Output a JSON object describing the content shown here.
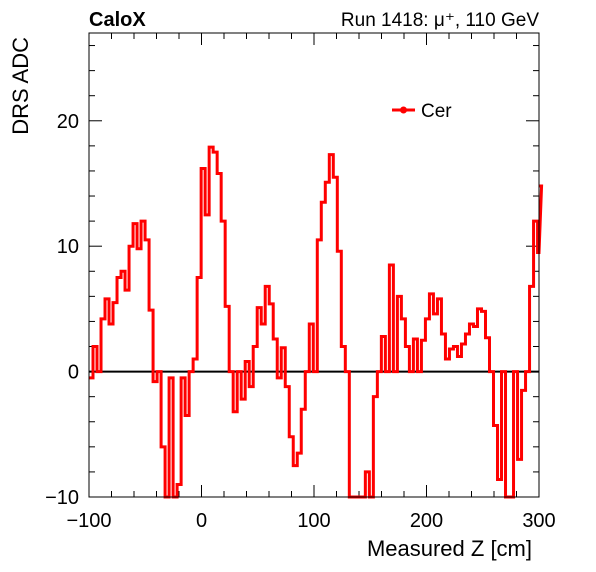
{
  "header": {
    "left": "CaloX",
    "right": "Run 1418:   μ⁺, 110 GeV"
  },
  "colors": {
    "series": "#ff0000",
    "axis": "#000000",
    "zero_line": "#000000"
  },
  "chart_data": {
    "type": "line",
    "xlabel": "Measured Z [cm]",
    "ylabel": "DRS ADC",
    "xlim": [
      -100,
      300
    ],
    "ylim": [
      -10,
      27
    ],
    "x_ticks": [
      -100,
      0,
      100,
      200,
      300
    ],
    "y_ticks": [
      -10,
      0,
      10,
      20
    ],
    "x_tick_labels": [
      "−100",
      "0",
      "100",
      "200",
      "300"
    ],
    "y_tick_labels": [
      "−10",
      "0",
      "10",
      "20"
    ],
    "grid": false,
    "legend_position": "top-right",
    "zero_line": true,
    "series": [
      {
        "name": "Cer",
        "style": "step",
        "bin_width": 3.56,
        "x_start": -100,
        "values": [
          -0.5,
          2,
          0,
          4.2,
          5.8,
          3.8,
          5.5,
          7.5,
          8,
          6.5,
          10,
          11.8,
          9.8,
          12,
          10.5,
          4.9,
          -0.8,
          0,
          -6,
          -10,
          -0.5,
          -10,
          -9,
          -0.5,
          -3.5,
          0,
          1,
          7.5,
          16.2,
          12.5,
          17.9,
          17.5,
          15.8,
          12,
          5.2,
          0,
          -3.2,
          0,
          -2.2,
          0.8,
          -1.2,
          2,
          5.1,
          3.8,
          6.8,
          5.4,
          2.6,
          -0.5,
          1.9,
          -1.2,
          -5.2,
          -7.5,
          -6.5,
          -3,
          0,
          3.8,
          0,
          10.5,
          13.5,
          15.1,
          17.3,
          15.5,
          9.6,
          2,
          0,
          -10,
          -10,
          -10,
          -10,
          -8,
          -10,
          -2,
          0,
          2.8,
          0,
          8.5,
          0,
          6,
          4.2,
          2,
          0,
          2.6,
          0,
          2.5,
          4.2,
          6.2,
          4.6,
          5.8,
          3,
          1,
          1.8,
          2,
          1.2,
          2.2,
          3,
          3.8,
          3.6,
          5,
          4.8,
          2.7,
          0,
          -4.3,
          -8.6,
          0,
          -10,
          -10,
          0,
          -7,
          -1.5,
          0,
          6.8,
          12,
          9.5,
          14.8
        ]
      }
    ]
  }
}
